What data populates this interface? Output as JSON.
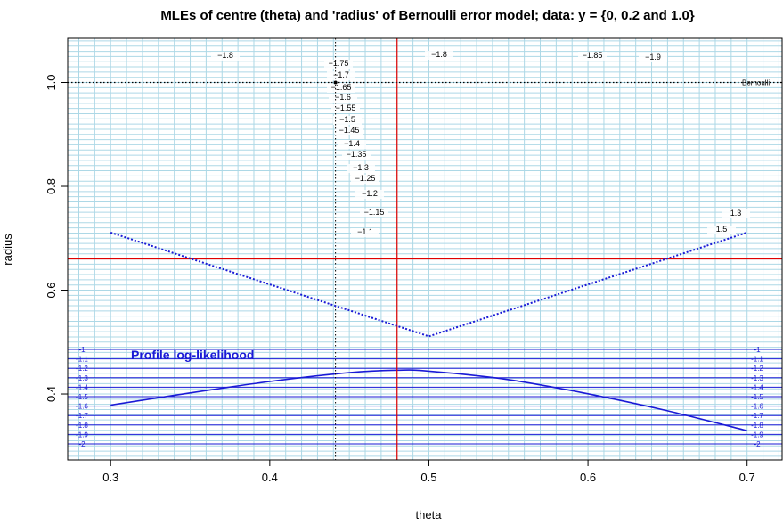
{
  "chart_data": {
    "type": "contour",
    "title": "MLEs of centre (theta) and 'radius' of Bernoulli error model; data: y = {0, 0.2 and 1.0}",
    "xlabel": "theta",
    "ylabel": "radius",
    "xlim": [
      0.273,
      0.722
    ],
    "ylim": [
      0.273,
      1.085
    ],
    "x_ticks": [
      0.3,
      0.4,
      0.5,
      0.6,
      0.7
    ],
    "y_ticks": [
      0.4,
      0.6,
      0.8,
      1.0
    ],
    "grid": true,
    "grid_color": "#add8e6",
    "data": [
      0,
      0.2,
      1.0
    ],
    "mle": {
      "theta": 0.48,
      "radius": 0.66
    },
    "mean_theta_line": 0.4413,
    "bernoulli_radius": 1.0,
    "bernoulli_label": "Bernoulli",
    "contour_levels": [
      -1.1,
      -1.15,
      -1.2,
      -1.25,
      -1.3,
      -1.35,
      -1.4,
      -1.45,
      -1.5,
      -1.55,
      -1.6,
      -1.65,
      -1.7,
      -1.75,
      -1.8,
      -1.85,
      -1.9
    ],
    "contour_label_texts": [
      "−1.1",
      "−1.15",
      "−1.2",
      "−1.25",
      "−1.3",
      "−1.35",
      "−1.4",
      "−1.45",
      "−1.5",
      "−1.55",
      "−1.6",
      "−1.65",
      "−1.7",
      "−1.75",
      "−1.8",
      "−1.85",
      "−1.9",
      "−1.8",
      "−1.8",
      "1.3",
      "1.5"
    ],
    "profile": {
      "title": "Profile log-likelihood",
      "levels": [
        -1,
        -1.1,
        -1.2,
        -1.3,
        -1.4,
        -1.5,
        -1.6,
        -1.7,
        -1.8,
        -1.9,
        -2
      ],
      "level_labels": [
        "-1",
        "-1.1",
        "-1.2",
        "-1.3",
        "-1.4",
        "-1.5",
        "-1.6",
        "-1.7",
        "-1.8",
        "-1.9",
        "-2"
      ],
      "theta": [
        0.3,
        0.35,
        0.4,
        0.45,
        0.48,
        0.5,
        0.55,
        0.6,
        0.65,
        0.7
      ],
      "loglik": [
        -1.59,
        -1.46,
        -1.34,
        -1.245,
        -1.22,
        -1.23,
        -1.32,
        -1.47,
        -1.65,
        -1.86
      ]
    },
    "colors": {
      "contour": "#000000",
      "mle_lines": "#e00000",
      "profile": "#1a1ad6",
      "ridge": "#1a1ad6",
      "grid": "#add8e6"
    }
  }
}
